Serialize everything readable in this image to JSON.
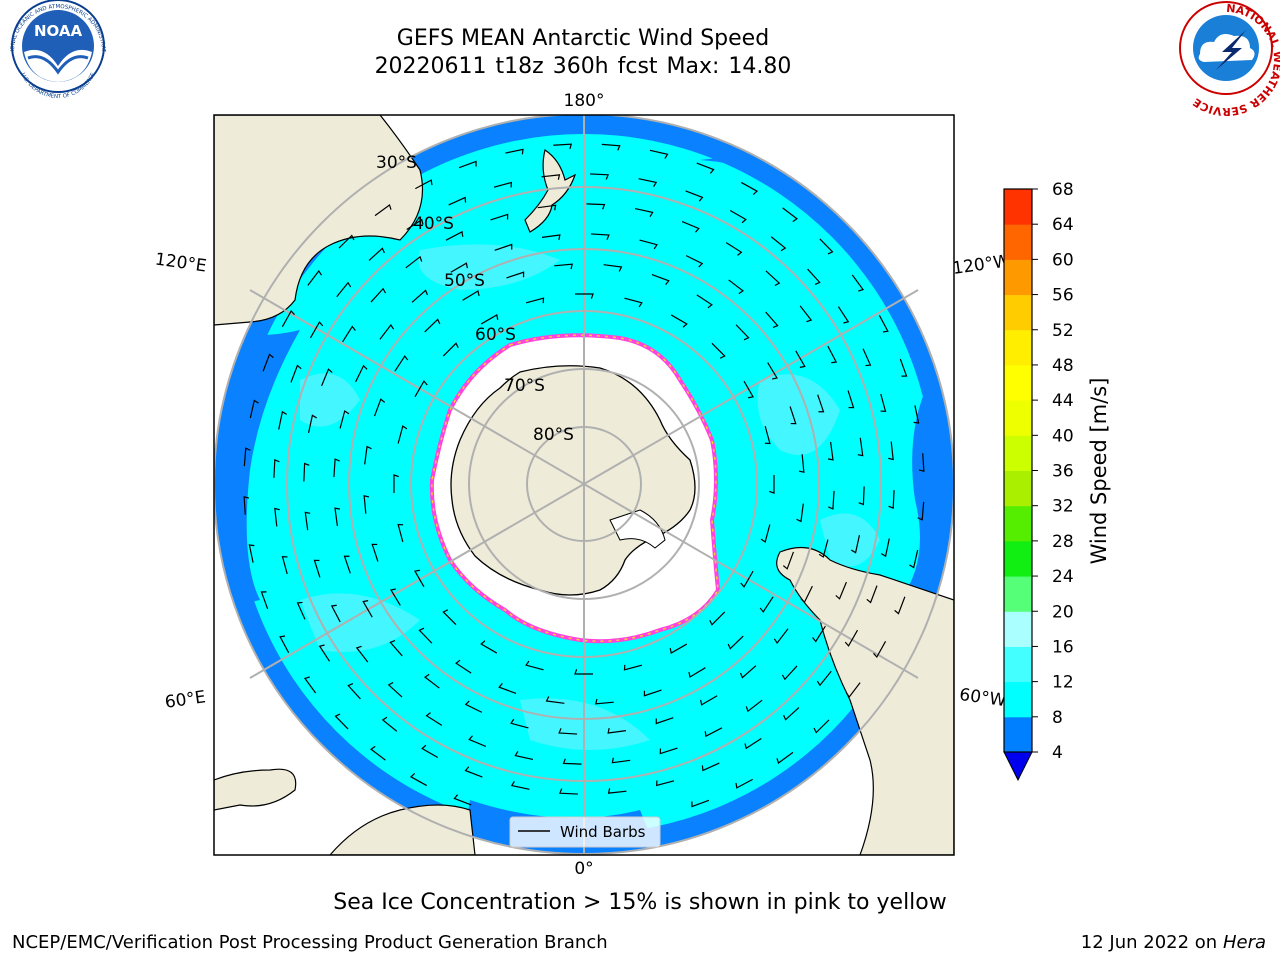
{
  "title": {
    "line1": "GEFS MEAN Antarctic Wind Speed",
    "line2": "20220611 t18z 360h fcst   Max: 14.80"
  },
  "caption": "Sea Ice Concentration > 15% is shown in pink to yellow",
  "footer": {
    "left": "NCEP/EMC/Verification Post Processing Product Generation Branch",
    "right_date": "12 Jun 2022 on",
    "right_host": "Hera"
  },
  "logos": {
    "noara_text": "NOAA",
    "noaa_ring_top": "NATIONAL OCEANIC AND ATMOSPHERIC ADMINISTRATION",
    "noaa_ring_bottom": "U.S. DEPARTMENT OF COMMERCE",
    "nws_ring": "NATIONAL WEATHER SERVICE"
  },
  "map": {
    "projection": "south-polar-stereographic",
    "lon_labels": {
      "top": "180°",
      "bottom": "0°",
      "ul": "120°E",
      "ur": "120°W",
      "ll": "60°E",
      "lr": "60°W"
    },
    "lat_labels": [
      "30°S",
      "40°S",
      "50°S",
      "60°S",
      "70°S",
      "80°S"
    ],
    "legend": "Wind Barbs",
    "colors": {
      "land": "#eeecd9",
      "ocean_8_12": "#00ffff",
      "ocean_12_16": "#3ff3ff",
      "ocean_4_8": "#0080ff",
      "ice": "#ffffff",
      "ice_edge_pink": "#ff44dd",
      "ice_edge_yellow": "#ffcc33",
      "grid": "#b0b0b0"
    }
  },
  "colorbar": {
    "label": "Wind Speed [m/s]",
    "ticks": [
      "4",
      "8",
      "12",
      "16",
      "20",
      "24",
      "28",
      "32",
      "36",
      "40",
      "44",
      "48",
      "52",
      "56",
      "60",
      "64",
      "68"
    ],
    "colors": [
      "#0080ff",
      "#00ffff",
      "#44ffff",
      "#aaffff",
      "#55ff77",
      "#11ee11",
      "#55ee00",
      "#aaee00",
      "#ccff00",
      "#eeff00",
      "#ffff00",
      "#ffee00",
      "#ffcc00",
      "#ff9900",
      "#ff6600",
      "#ff3300",
      "#ff0000"
    ],
    "extend_color": "#0000ee"
  }
}
